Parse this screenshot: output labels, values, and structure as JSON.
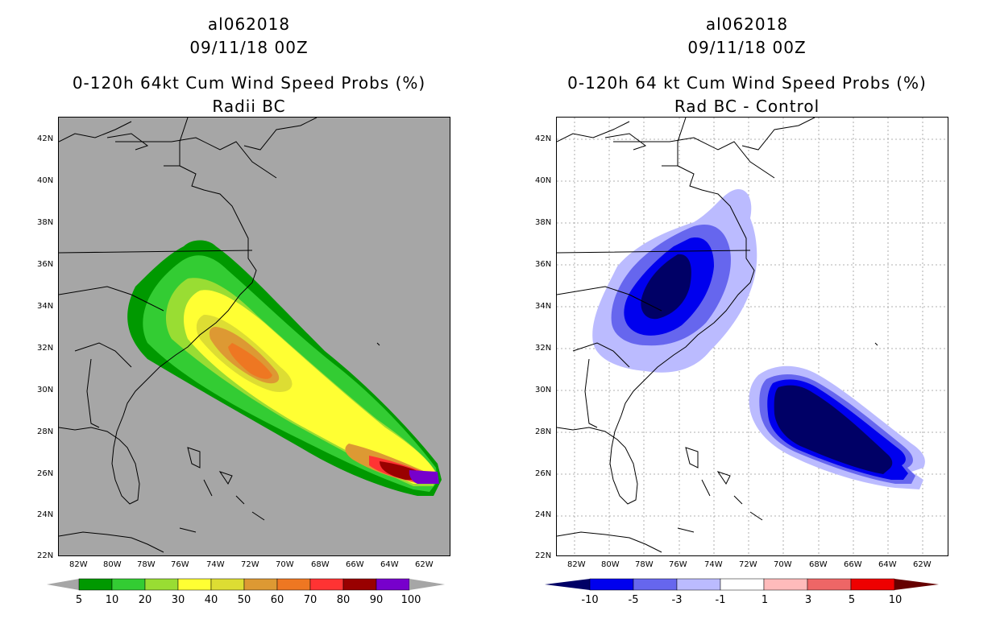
{
  "left": {
    "title1": "al062018",
    "title2": "09/11/18 00Z",
    "title3": "0-120h 64kt Cum Wind Speed Probs (%)",
    "title4": "Radii BC",
    "background": "#a6a6a6",
    "colorbar": {
      "labels": [
        "5",
        "10",
        "20",
        "30",
        "40",
        "50",
        "60",
        "70",
        "80",
        "90",
        "100"
      ],
      "colors": [
        "#009900",
        "#33cc33",
        "#99dd33",
        "#ffff33",
        "#dddd33",
        "#dd9933",
        "#ee7722",
        "#ff3333",
        "#990000",
        "#7700cc"
      ]
    }
  },
  "right": {
    "title1": "al062018",
    "title2": "09/11/18 00Z",
    "title3": "0-120h 64 kt Cum Wind Speed Probs (%)",
    "title4": "Rad BC - Control",
    "background": "#ffffff",
    "colorbar": {
      "labels": [
        "-10",
        "-5",
        "-3",
        "-1",
        "1",
        "3",
        "5",
        "10"
      ],
      "colors": [
        "#000066",
        "#0000ee",
        "#6666ee",
        "#bbbbff",
        "#ffffff",
        "#ffbbbb",
        "#ee6666",
        "#ee0000",
        "#660000"
      ]
    }
  },
  "axes": {
    "lat_labels": [
      "42N",
      "40N",
      "38N",
      "36N",
      "34N",
      "32N",
      "30N",
      "28N",
      "26N",
      "24N",
      "22N"
    ],
    "lon_labels": [
      "82W",
      "80W",
      "78W",
      "76W",
      "74W",
      "72W",
      "70W",
      "68W",
      "66W",
      "64W",
      "62W"
    ]
  }
}
